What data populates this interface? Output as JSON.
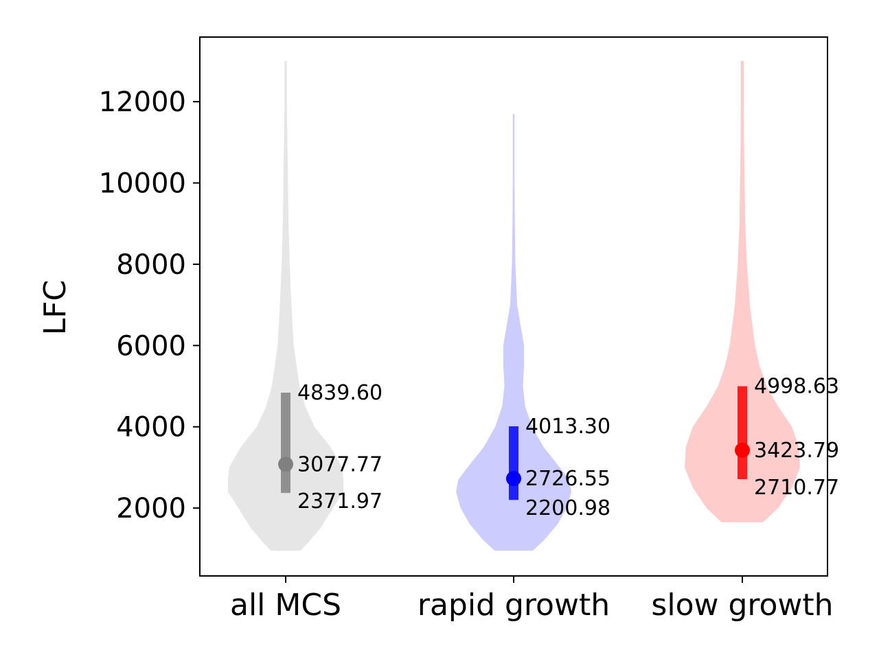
{
  "chart_data": {
    "type": "violin",
    "title": "",
    "xlabel": "",
    "ylabel": "LFC",
    "ylim": [
      330,
      13590
    ],
    "yticks": [
      2000,
      4000,
      6000,
      8000,
      10000,
      12000
    ],
    "ytick_labels": [
      "2000",
      "4000",
      "6000",
      "8000",
      "10000",
      "12000"
    ],
    "grid": false,
    "categories": [
      "all MCS",
      "rapid growth",
      "slow growth"
    ],
    "series": [
      {
        "category": "all MCS",
        "color": "#e6e6e6",
        "stat_color": "#808080",
        "min": 950,
        "max": 13000,
        "q1": 2371.97,
        "median": 3077.77,
        "q3": 4839.6,
        "q1_label": "2371.97",
        "median_label": "3077.77",
        "q3_label": "4839.60",
        "density_profile": [
          [
            950,
            0.26
          ],
          [
            1200,
            0.42
          ],
          [
            1500,
            0.6
          ],
          [
            2000,
            0.82
          ],
          [
            2400,
            1.0
          ],
          [
            2700,
            1.0
          ],
          [
            3000,
            0.98
          ],
          [
            3500,
            0.78
          ],
          [
            4000,
            0.5
          ],
          [
            4500,
            0.34
          ],
          [
            5000,
            0.24
          ],
          [
            6000,
            0.14
          ],
          [
            7000,
            0.1
          ],
          [
            8000,
            0.07
          ],
          [
            9000,
            0.05
          ],
          [
            10000,
            0.04
          ],
          [
            11000,
            0.03
          ],
          [
            12000,
            0.02
          ],
          [
            13000,
            0.02
          ]
        ]
      },
      {
        "category": "rapid growth",
        "color": "#ccccff",
        "stat_color": "#0000ff",
        "min": 950,
        "max": 11700,
        "q1": 2200.98,
        "median": 2726.55,
        "q3": 4013.3,
        "q1_label": "2200.98",
        "median_label": "2726.55",
        "q3_label": "4013.30",
        "density_profile": [
          [
            950,
            0.33
          ],
          [
            1200,
            0.52
          ],
          [
            1600,
            0.76
          ],
          [
            2000,
            0.92
          ],
          [
            2400,
            1.0
          ],
          [
            2700,
            0.96
          ],
          [
            3000,
            0.8
          ],
          [
            3500,
            0.52
          ],
          [
            4000,
            0.32
          ],
          [
            4500,
            0.2
          ],
          [
            5000,
            0.16
          ],
          [
            5500,
            0.18
          ],
          [
            6000,
            0.18
          ],
          [
            6500,
            0.12
          ],
          [
            7000,
            0.06
          ],
          [
            8000,
            0.03
          ],
          [
            9000,
            0.02
          ],
          [
            10000,
            0.015
          ],
          [
            11700,
            0.015
          ]
        ]
      },
      {
        "category": "slow growth",
        "color": "#ffcccc",
        "stat_color": "#ff0000",
        "min": 1650,
        "max": 13000,
        "q1": 2710.77,
        "median": 3423.79,
        "q3": 4998.63,
        "q1_label": "2710.77",
        "median_label": "3423.79",
        "q3_label": "4998.63",
        "density_profile": [
          [
            1650,
            0.36
          ],
          [
            2000,
            0.62
          ],
          [
            2500,
            0.86
          ],
          [
            3000,
            1.0
          ],
          [
            3500,
            0.98
          ],
          [
            4000,
            0.86
          ],
          [
            4500,
            0.62
          ],
          [
            5000,
            0.42
          ],
          [
            5500,
            0.3
          ],
          [
            6000,
            0.22
          ],
          [
            7000,
            0.13
          ],
          [
            8000,
            0.08
          ],
          [
            9000,
            0.05
          ],
          [
            10000,
            0.04
          ],
          [
            11000,
            0.03
          ],
          [
            12000,
            0.025
          ],
          [
            13000,
            0.025
          ]
        ]
      }
    ]
  }
}
